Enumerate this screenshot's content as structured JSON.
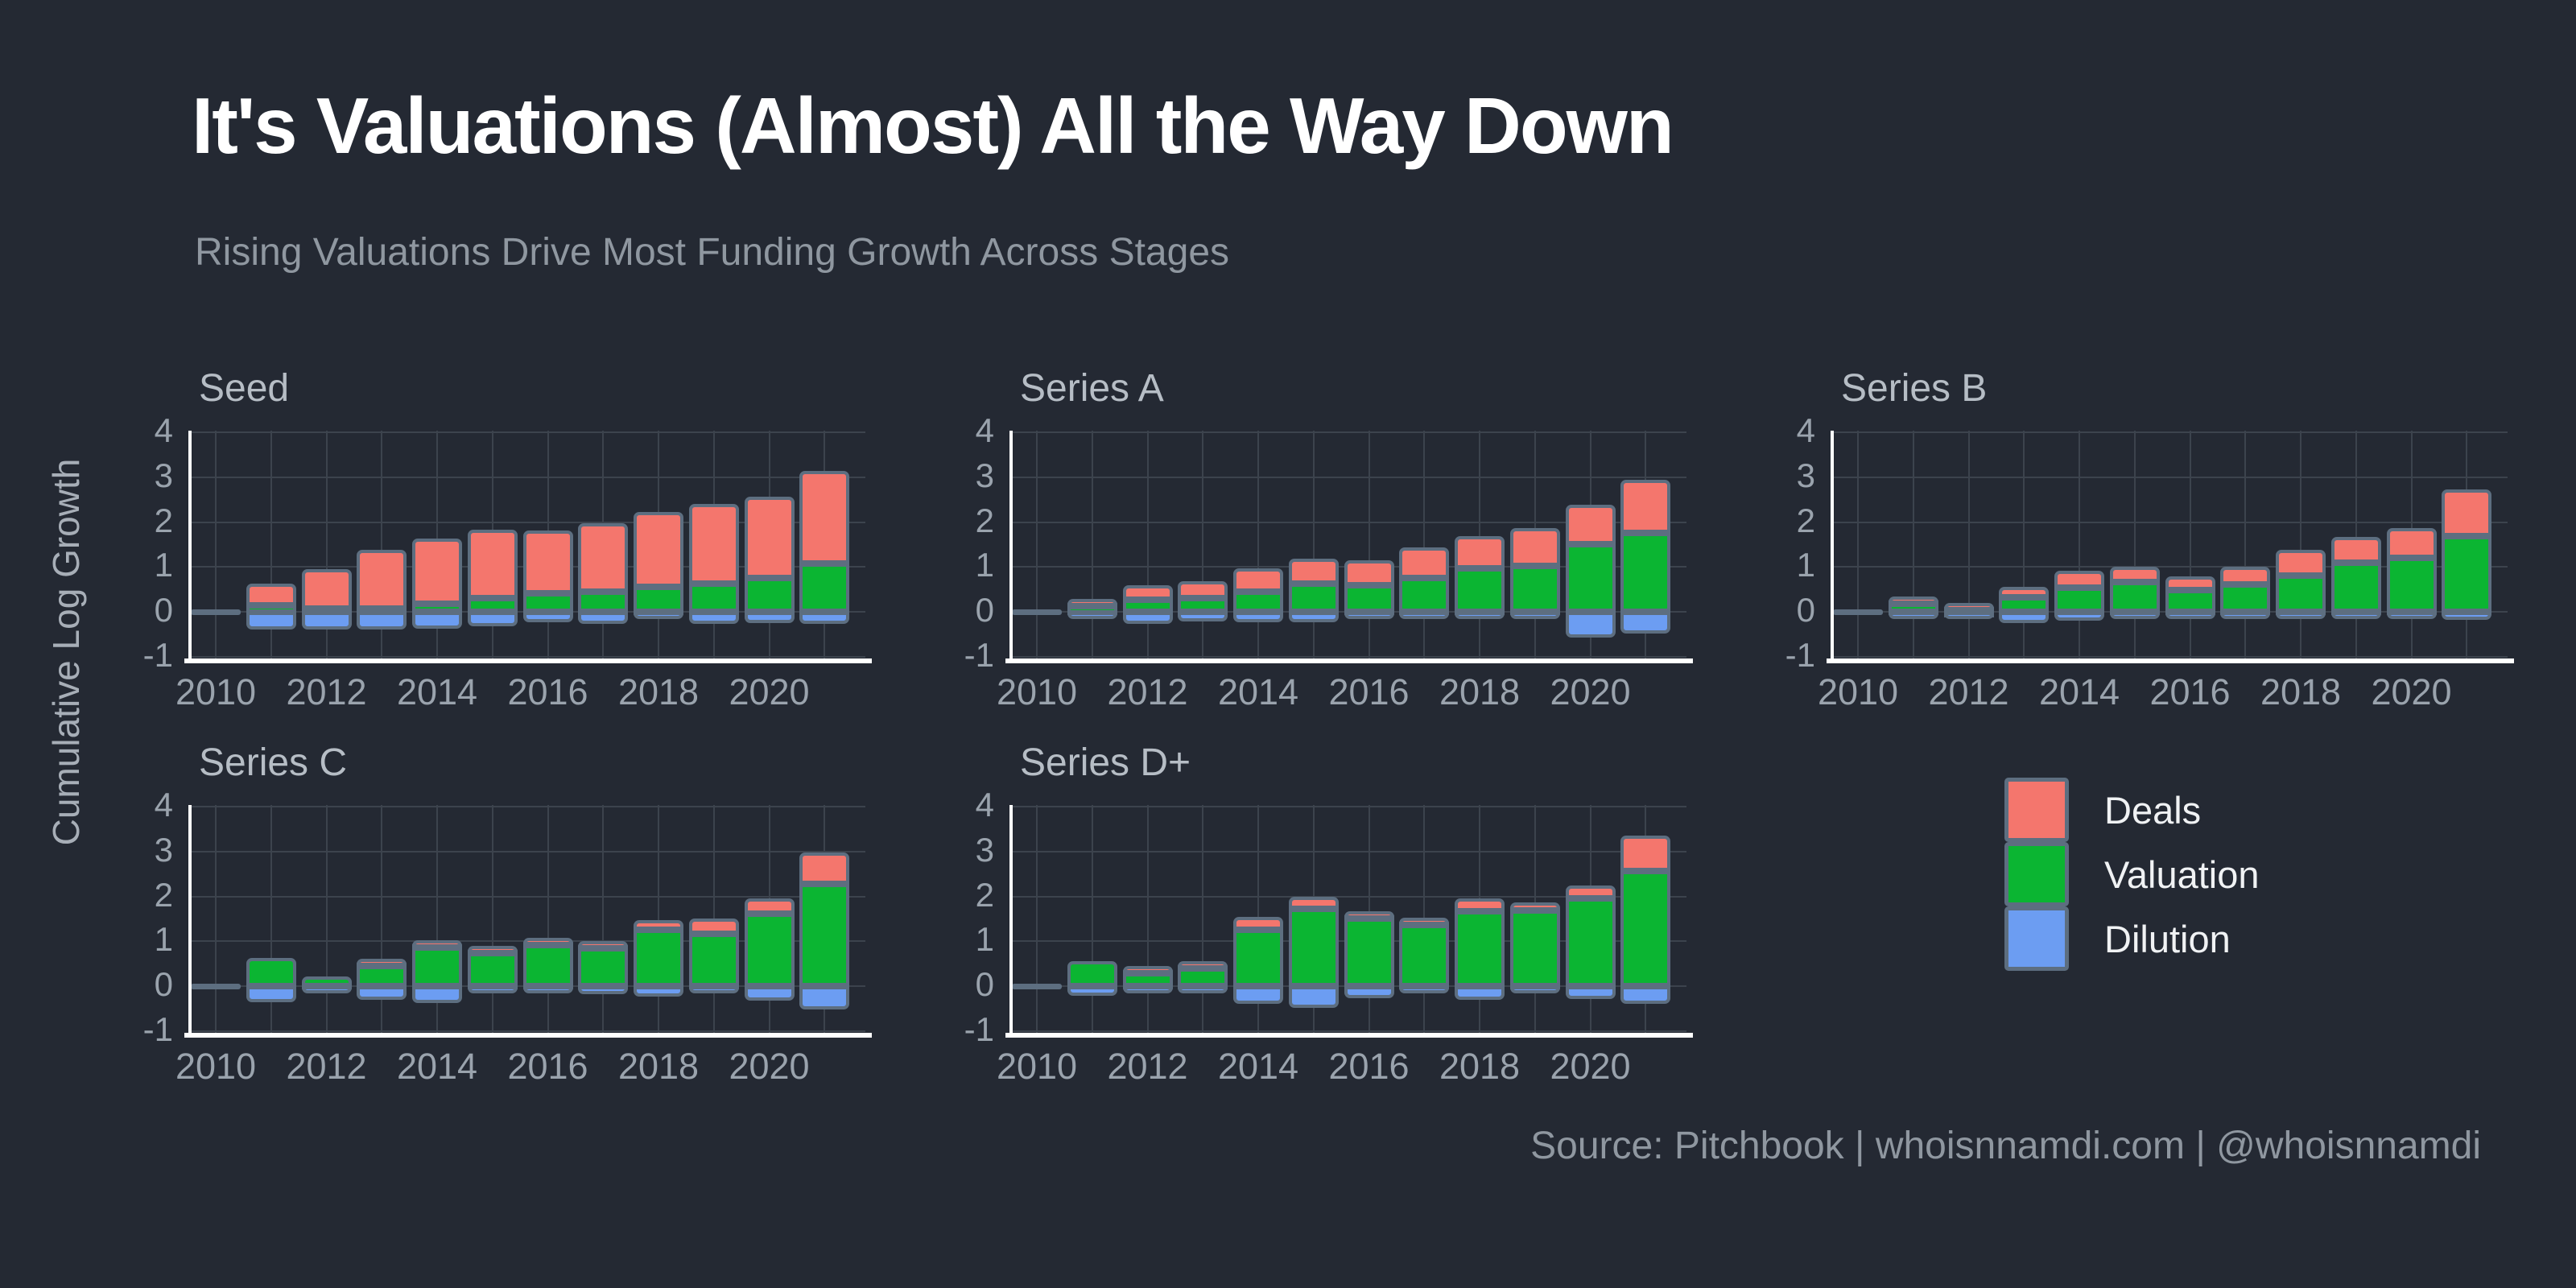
{
  "header": {
    "title": "It's Valuations (Almost) All the Way Down",
    "subtitle": "Rising Valuations Drive Most Funding Growth Across Stages"
  },
  "footer": {
    "source": "Source: Pitchbook | whoisnnamdi.com | @whoisnnamdi"
  },
  "axis": {
    "y_label": "Cumulative Log Growth",
    "y_ticks": [
      4,
      3,
      2,
      1,
      0,
      -1
    ],
    "x_tick_labels": [
      "2010",
      "2012",
      "2014",
      "2016",
      "2018",
      "2020"
    ],
    "ylim": [
      -1.2,
      4.05
    ],
    "grid": true
  },
  "colors": {
    "deals": "#f4766d",
    "valuation": "#0bb532",
    "dilution": "#6c9df2",
    "bar_border": "#5d6e80",
    "background": "#242933",
    "gridline": "#3c434d",
    "axis_line": "#ffffff"
  },
  "legend": {
    "position": "right-middle",
    "items": [
      {
        "label": "Deals",
        "color": "#f4766d"
      },
      {
        "label": "Valuation",
        "color": "#0bb532"
      },
      {
        "label": "Dilution",
        "color": "#6c9df2"
      }
    ]
  },
  "chart_data": [
    {
      "type": "bar",
      "stacked": true,
      "title": "Seed",
      "x": [
        2010,
        2011,
        2012,
        2013,
        2014,
        2015,
        2016,
        2017,
        2018,
        2019,
        2020,
        2021
      ],
      "series": {
        "valuation": [
          0,
          0.15,
          0.07,
          0.08,
          0.18,
          0.31,
          0.42,
          0.45,
          0.55,
          0.63,
          0.75,
          1.08
        ],
        "deals": [
          0,
          0.48,
          0.88,
          1.3,
          1.45,
          1.52,
          1.4,
          1.53,
          1.68,
          1.78,
          1.82,
          2.06
        ],
        "dilution": [
          0,
          -0.4,
          -0.4,
          -0.4,
          -0.38,
          -0.33,
          -0.24,
          -0.27,
          -0.1,
          -0.27,
          -0.25,
          -0.27
        ]
      }
    },
    {
      "type": "bar",
      "stacked": true,
      "title": "Series A",
      "x": [
        2010,
        2011,
        2012,
        2013,
        2014,
        2015,
        2016,
        2017,
        2018,
        2019,
        2020,
        2021
      ],
      "series": {
        "valuation": [
          0,
          0.13,
          0.27,
          0.31,
          0.45,
          0.63,
          0.6,
          0.75,
          0.96,
          1.02,
          1.51,
          1.75
        ],
        "deals": [
          0,
          0.13,
          0.32,
          0.38,
          0.51,
          0.56,
          0.55,
          0.68,
          0.73,
          0.84,
          0.87,
          1.2
        ],
        "dilution": [
          0,
          -0.03,
          -0.27,
          -0.21,
          -0.23,
          -0.23,
          -0.05,
          -0.12,
          -0.05,
          -0.08,
          -0.57,
          -0.48
        ]
      }
    },
    {
      "type": "bar",
      "stacked": true,
      "title": "Series B",
      "x": [
        2010,
        2011,
        2012,
        2013,
        2014,
        2015,
        2016,
        2017,
        2018,
        2019,
        2020,
        2021
      ],
      "series": {
        "valuation": [
          0,
          0.18,
          0.03,
          0.33,
          0.53,
          0.67,
          0.48,
          0.61,
          0.81,
          1.09,
          1.21,
          1.69
        ],
        "deals": [
          0,
          0.13,
          0.14,
          0.22,
          0.39,
          0.34,
          0.31,
          0.4,
          0.57,
          0.57,
          0.66,
          1.04
        ],
        "dilution": [
          0,
          -0.15,
          -0.07,
          -0.25,
          -0.2,
          -0.13,
          -0.04,
          -0.04,
          -0.04,
          -0.05,
          -0.1,
          -0.18
        ]
      }
    },
    {
      "type": "bar",
      "stacked": true,
      "title": "Series C",
      "x": [
        2010,
        2011,
        2012,
        2013,
        2014,
        2015,
        2016,
        2017,
        2018,
        2019,
        2020,
        2021
      ],
      "series": {
        "valuation": [
          0,
          0.62,
          0.21,
          0.45,
          0.86,
          0.74,
          0.92,
          0.85,
          1.26,
          1.17,
          1.62,
          2.28
        ],
        "deals": [
          0,
          0,
          0,
          0.02,
          0.14,
          0.12,
          0.08,
          0.15,
          0.21,
          0.33,
          0.34,
          0.7
        ],
        "dilution": [
          0,
          -0.35,
          -0.1,
          -0.3,
          -0.38,
          -0.11,
          -0.09,
          -0.18,
          -0.24,
          -0.17,
          -0.33,
          -0.52
        ]
      }
    },
    {
      "type": "bar",
      "stacked": true,
      "title": "Series D+",
      "x": [
        2010,
        2011,
        2012,
        2013,
        2014,
        2015,
        2016,
        2017,
        2018,
        2019,
        2020,
        2021
      ],
      "series": {
        "valuation": [
          0,
          0.56,
          0.28,
          0.4,
          1.25,
          1.72,
          1.51,
          1.36,
          1.66,
          1.69,
          1.96,
          2.57
        ],
        "deals": [
          0,
          0,
          0.1,
          0.15,
          0.3,
          0.28,
          0.09,
          0.1,
          0.29,
          0.18,
          0.28,
          0.79
        ],
        "dilution": [
          0,
          -0.21,
          -0.04,
          -0.04,
          -0.39,
          -0.49,
          -0.27,
          -0.14,
          -0.31,
          -0.14,
          -0.28,
          -0.4
        ]
      }
    }
  ]
}
